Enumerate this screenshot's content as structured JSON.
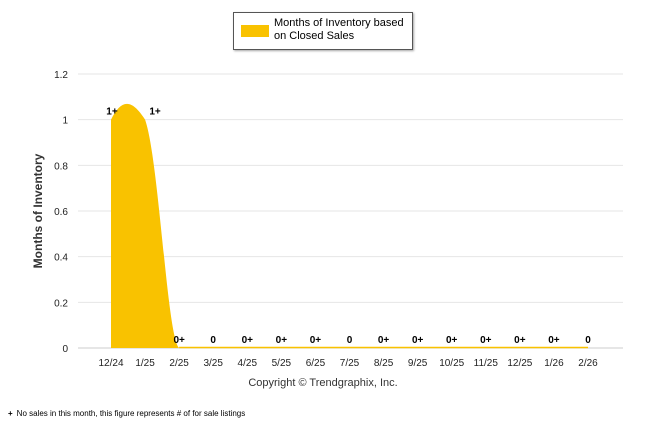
{
  "chart_data": {
    "type": "area",
    "legend": {
      "label": "Months of Inventory based on Closed Sales",
      "position": "top-center"
    },
    "ylabel": "Months of Inventory",
    "xlabel": "",
    "ylim": [
      0,
      1.2
    ],
    "yticks": [
      "0",
      "0.2",
      "0.4",
      "0.6",
      "0.8",
      "1",
      "1.2"
    ],
    "grid": true,
    "color": "#f9c200",
    "categories": [
      "12/24",
      "1/25",
      "2/25",
      "3/25",
      "4/25",
      "5/25",
      "6/25",
      "7/25",
      "8/25",
      "9/25",
      "10/25",
      "11/25",
      "12/25",
      "1/26",
      "2/26"
    ],
    "values": [
      1,
      1,
      0,
      0,
      0,
      0,
      0,
      0,
      0,
      0,
      0,
      0,
      0,
      0,
      0
    ],
    "data_labels": [
      "1+",
      "1+",
      "0+",
      "0",
      "0+",
      "0+",
      "0+",
      "0",
      "0+",
      "0+",
      "0+",
      "0+",
      "0+",
      "0+",
      "0"
    ]
  },
  "copyright": "Copyright © Trendgraphix, Inc.",
  "footnote": {
    "mark": "+",
    "text": "No sales in this month, this figure represents # of for sale listings"
  }
}
